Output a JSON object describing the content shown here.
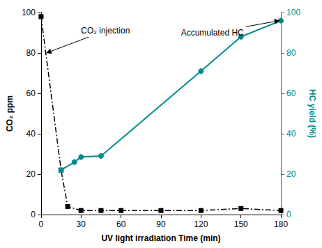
{
  "chart_data": {
    "type": "line",
    "xlabel": "UV light irradiation Time (min)",
    "ylabel": "CO₂ ppm",
    "y2label": "HC yield (%)",
    "xlim": [
      0,
      180
    ],
    "xticks": [
      0,
      30,
      60,
      90,
      120,
      150,
      180
    ],
    "ylim": [
      0,
      100
    ],
    "yticks": [
      0,
      20,
      40,
      60,
      80,
      100
    ],
    "y2lim": [
      0,
      100
    ],
    "y2ticks": [
      0,
      20,
      40,
      60,
      80,
      100
    ],
    "grid": false,
    "series": [
      {
        "x": [
          0,
          15,
          20,
          30,
          45,
          60,
          90,
          120,
          150,
          180
        ],
        "values": [
          98,
          22,
          4,
          2,
          2,
          2,
          2,
          2,
          3,
          2
        ],
        "color": "#000000",
        "marker": "square",
        "line_style": "dashdot"
      },
      {
        "x": [
          15,
          25,
          30,
          45,
          120,
          150,
          180
        ],
        "values": [
          22,
          26,
          28.5,
          29,
          71,
          88,
          96
        ],
        "color": "#008B8B",
        "marker": "circle",
        "line_style": "solid",
        "axis": "y2"
      }
    ],
    "annotations": [
      {
        "text": "CO₂ injection",
        "xy": [
          4,
          80
        ],
        "xytext": [
          30,
          91
        ]
      },
      {
        "text": "Accumulated HC",
        "xy": [
          179,
          96
        ],
        "xytext": [
          105,
          90
        ]
      }
    ]
  }
}
